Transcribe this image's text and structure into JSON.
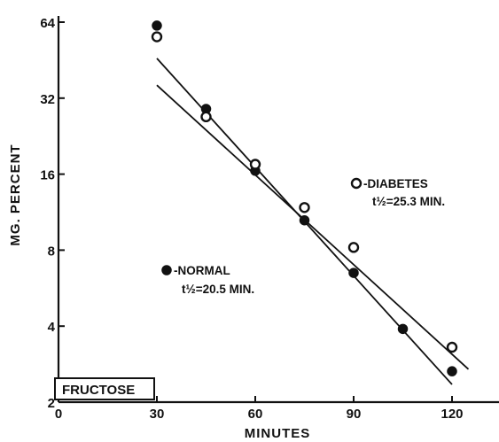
{
  "chart_data": {
    "type": "scatter",
    "xlabel": "MINUTES",
    "ylabel": "MG. PERCENT",
    "x_scale": "linear",
    "y_scale": "log2",
    "xlim": [
      0,
      125
    ],
    "ylim": [
      2,
      64
    ],
    "x_ticks": [
      0,
      30,
      60,
      90,
      120
    ],
    "y_ticks": [
      2,
      4,
      8,
      16,
      32,
      64
    ],
    "x_tick_labels": [
      "0",
      "30",
      "60",
      "90",
      "120"
    ],
    "y_tick_labels": [
      "2",
      "4",
      "8",
      "16",
      "32",
      "64"
    ],
    "box_label": "FRUCTOSE",
    "grid": false,
    "series": [
      {
        "name": "NORMAL",
        "marker": "filled-circle",
        "legend_line1": "-NORMAL",
        "legend_line2": "t½=20.5 MIN.",
        "x": [
          30,
          45,
          60,
          75,
          90,
          105,
          120
        ],
        "y": [
          62,
          29,
          16.5,
          10.5,
          6.5,
          3.9,
          2.65
        ],
        "fit": {
          "x": [
            30,
            120
          ],
          "y": [
            46,
            2.35
          ]
        }
      },
      {
        "name": "DIABETES",
        "marker": "open-circle",
        "legend_line1": "-DIABETES",
        "legend_line2": "t½=25.3 MIN.",
        "x": [
          30,
          45,
          60,
          75,
          90,
          120
        ],
        "y": [
          56,
          27,
          17.5,
          11.8,
          8.2,
          3.3
        ],
        "fit": {
          "x": [
            30,
            125
          ],
          "y": [
            36,
            2.7
          ]
        }
      }
    ]
  }
}
